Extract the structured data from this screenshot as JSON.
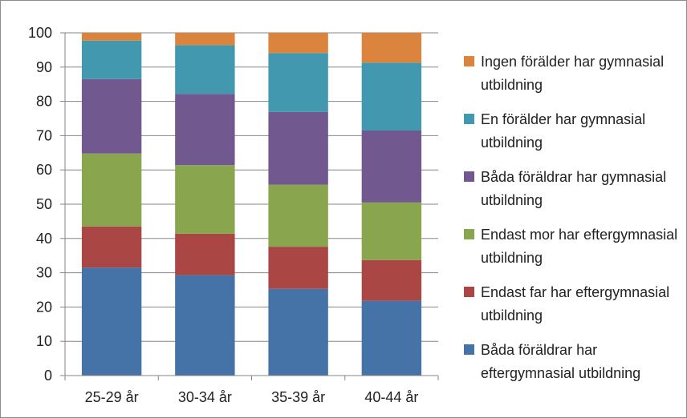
{
  "chart_data": {
    "type": "bar",
    "stacked": true,
    "categories": [
      "25-29 år",
      "30-34 år",
      "35-39 år",
      "40-44 år"
    ],
    "ylim": [
      0,
      100
    ],
    "yticks": [
      0,
      10,
      20,
      30,
      40,
      50,
      60,
      70,
      80,
      90,
      100
    ],
    "grid": true,
    "legend_position": "right",
    "series": [
      {
        "name": "Båda föräldrar har eftergymnasial utbildning",
        "color": "#4572A7",
        "values": [
          31.5,
          29.3,
          25.3,
          21.8
        ]
      },
      {
        "name": "Endast far har eftergymnasial utbildning",
        "color": "#AA4643",
        "values": [
          12.0,
          12.1,
          12.3,
          11.9
        ]
      },
      {
        "name": "Endast mor har eftergymnasial utbildning",
        "color": "#89A54E",
        "values": [
          21.3,
          20.0,
          18.1,
          16.8
        ]
      },
      {
        "name": "Båda föräldrar har gymnasial utbildning",
        "color": "#71588F",
        "values": [
          21.7,
          20.8,
          21.2,
          21.0
        ]
      },
      {
        "name": "En förälder har gymnasial utbildning",
        "color": "#4198AF",
        "values": [
          11.2,
          14.2,
          17.2,
          19.8
        ]
      },
      {
        "name": "Ingen förälder har gymnasial utbildning",
        "color": "#DB843D",
        "values": [
          2.3,
          3.6,
          5.9,
          8.7
        ]
      }
    ]
  }
}
